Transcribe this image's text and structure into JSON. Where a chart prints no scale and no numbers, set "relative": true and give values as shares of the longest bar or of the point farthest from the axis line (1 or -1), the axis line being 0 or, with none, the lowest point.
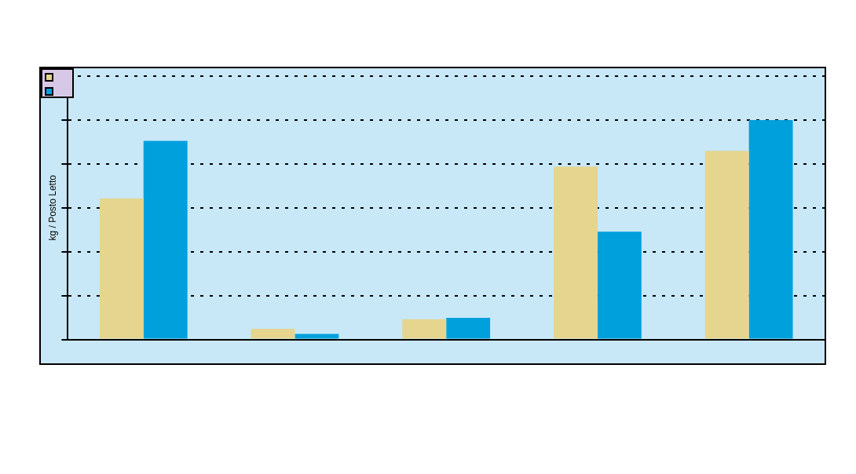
{
  "chart_data": {
    "type": "bar",
    "relative": true,
    "ylabel": "kg / Posto Letto",
    "categories": [
      null,
      null,
      null,
      null,
      null
    ],
    "series": [
      {
        "color": "#e5d58f",
        "values": [
          0.643,
          0.049,
          0.092,
          0.788,
          0.859
        ]
      },
      {
        "color": "#00a0dc",
        "values": [
          0.905,
          0.025,
          0.099,
          0.491,
          1
        ]
      }
    ],
    "grid": "y"
  }
}
